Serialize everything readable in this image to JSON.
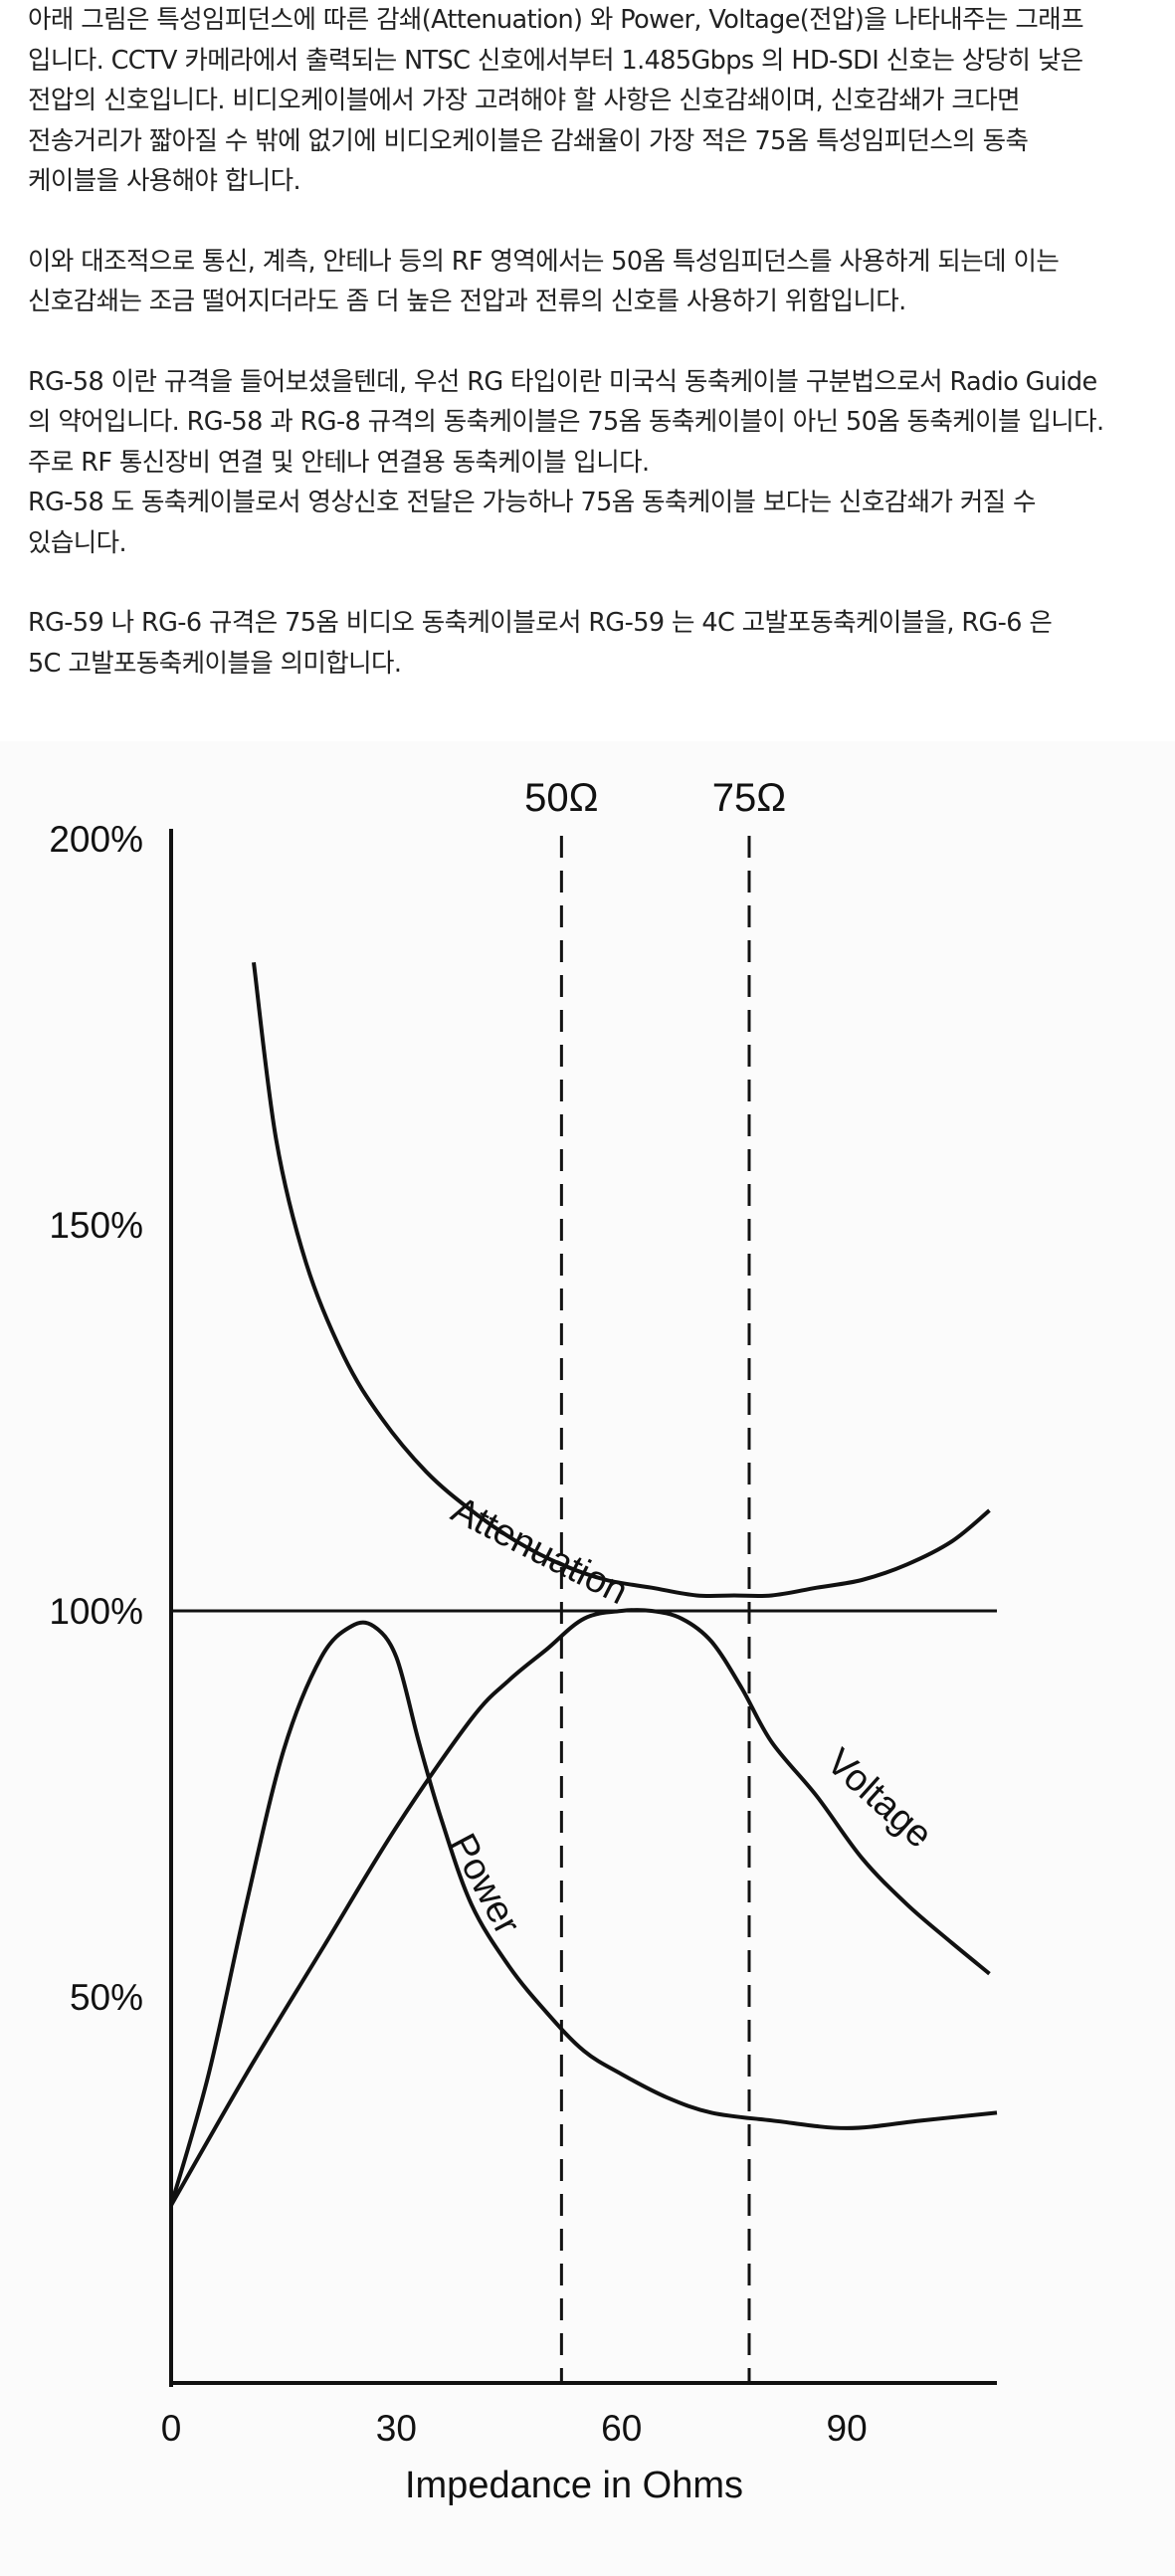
{
  "article": {
    "paragraphs": [
      {
        "lines": [
          "아래 그림은 특성임피던스에 따른 감쇄(Attenuation) 와 Power, Voltage(전압)을 나타내주는 그래프",
          "입니다. CCTV 카메라에서 출력되는 NTSC 신호에서부터 1.485Gbps 의 HD-SDI 신호는 상당히 낮은",
          "전압의 신호입니다. 비디오케이블에서 가장 고려해야 할 사항은 신호감쇄이며, 신호감쇄가 크다면",
          "전송거리가 짧아질 수 밖에 없기에 비디오케이블은 감쇄율이 가장 적은 75옴 특성임피던스의 동축",
          "케이블을 사용해야 합니다."
        ]
      },
      {
        "lines": [
          "이와 대조적으로 통신, 계측, 안테나 등의 RF 영역에서는 50옴 특성임피던스를 사용하게 되는데 이는",
          "신호감쇄는 조금 떨어지더라도 좀 더 높은 전압과 전류의 신호를 사용하기 위함입니다."
        ]
      },
      {
        "lines": [
          "RG-58 이란 규격을 들어보셨을텐데, 우선 RG 타입이란 미국식 동축케이블 구분법으로서 Radio Guide",
          "의 약어입니다. RG-58 과 RG-8 규격의 동축케이블은 75옴 동축케이블이 아닌 50옴 동축케이블 입니다.",
          "주로 RF 통신장비 연결 및 안테나 연결용 동축케이블 입니다.",
          "RG-58 도 동축케이블로서 영상신호 전달은 가능하나 75옴 동축케이블 보다는 신호감쇄가 커질 수",
          "있습니다."
        ]
      },
      {
        "lines": [
          "RG-59 나 RG-6 규격은 75옴 비디오 동축케이블로서 RG-59 는 4C 고발포동축케이블을, RG-6 은",
          "5C 고발포동축케이블을 의미합니다."
        ]
      }
    ]
  },
  "chart_data": {
    "type": "line",
    "xlabel": "Impedance in Ohms",
    "ylabel": "",
    "xlim": [
      0,
      110
    ],
    "ylim": [
      0,
      200
    ],
    "x_ticks": [
      "0",
      "30",
      "60",
      "90"
    ],
    "x_tick_values": [
      0,
      30,
      60,
      90
    ],
    "y_ticks": [
      "200%",
      "150%",
      "100%",
      "50%"
    ],
    "y_tick_values": [
      200,
      150,
      100,
      50
    ],
    "reference_lines": [
      {
        "label": "50Ω",
        "x": 52,
        "style": "dashed"
      },
      {
        "label": "75Ω",
        "x": 77,
        "style": "dashed"
      }
    ],
    "baseline_100": {
      "y": 100
    },
    "series": [
      {
        "name": "Attenuation",
        "x": [
          11,
          14,
          18,
          23,
          28,
          34,
          40,
          46,
          52,
          58,
          64,
          70,
          75,
          80,
          86,
          92,
          98,
          104,
          109
        ],
        "y": [
          184,
          161,
          145,
          133,
          125,
          118,
          113,
          109,
          106,
          104,
          103,
          102,
          102,
          102,
          103,
          104,
          106,
          109,
          113
        ]
      },
      {
        "name": "Power",
        "x": [
          0,
          5,
          10,
          15,
          20,
          24,
          27,
          30,
          33,
          36,
          40,
          45,
          50,
          55,
          60,
          66,
          72,
          80,
          90,
          100,
          110
        ],
        "y": [
          23,
          40,
          62,
          82,
          94,
          98,
          98,
          94,
          83,
          73,
          62,
          54,
          48,
          43,
          40,
          37,
          35,
          34,
          33,
          34,
          35
        ]
      },
      {
        "name": "Voltage",
        "x": [
          0,
          10,
          20,
          30,
          40,
          45,
          50,
          55,
          60,
          64,
          68,
          72,
          76,
          80,
          86,
          92,
          98,
          104,
          109
        ],
        "y": [
          23,
          40,
          56,
          72,
          86,
          91,
          95,
          99,
          100,
          100,
          99,
          96,
          90,
          83,
          76,
          68,
          62,
          57,
          53
        ]
      }
    ]
  }
}
